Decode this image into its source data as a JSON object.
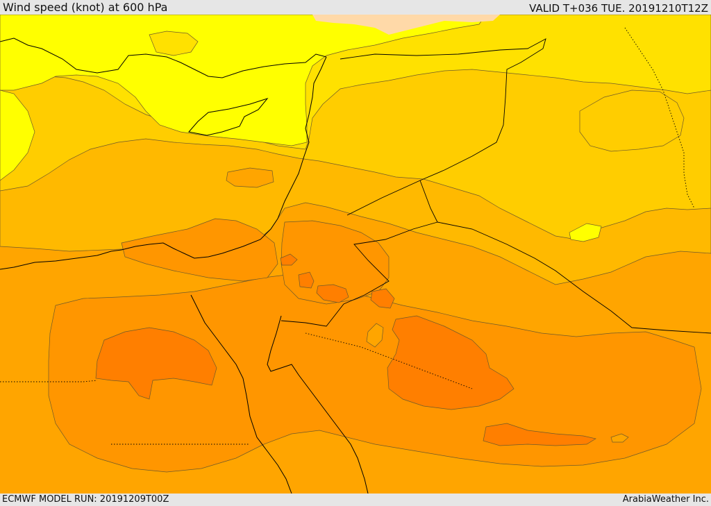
{
  "header": {
    "title": "Wind speed (knot) at 600 hPa",
    "valid": "VALID T+036 TUE. 20191210T12Z"
  },
  "footer": {
    "model_run": "ECMWF MODEL RUN: 20191209T00Z",
    "credit": "ArabiaWeather Inc."
  },
  "palette": {
    "band_1": "#ffff00",
    "band_2": "#ffe100",
    "band_3": "#ffcd00",
    "band_4": "#ffb900",
    "band_5": "#ffa500",
    "band_6": "#ff9600",
    "band_7": "#ff7f00",
    "band_8": "#ffd9a8",
    "coast": "#000000",
    "background": "#e6e6e6"
  }
}
